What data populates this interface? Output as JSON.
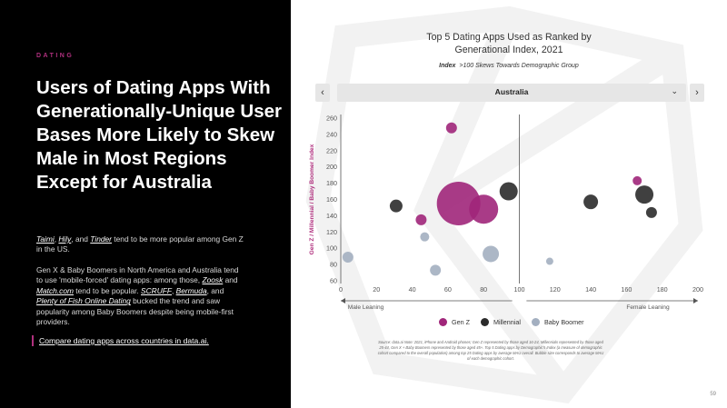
{
  "left": {
    "section_tag": "DATING",
    "headline": "Users of Dating Apps With Generationally-Unique User Bases More Likely to Skew Male in Most Regions Except for Australia",
    "para1": {
      "links": [
        "Taimi",
        "Hily",
        "Tinder"
      ],
      "sep1": ", ",
      "sep2": ", and ",
      "rest": " tend to be more popular among Gen Z in the US."
    },
    "para2": {
      "intro": "Gen X & Baby Boomers in North America and Australia tend to use 'mobile-forced' dating apps: among those, ",
      "link1": "Zoosk",
      "and1": " and ",
      "link2": "Match.com",
      "mid": " tend to be popular. ",
      "link3": "SCRUFF",
      "sep3": ", ",
      "link4": "Bermuda",
      "sep4": ", and ",
      "link5": "Plenty of Fish Online Dating",
      "end": " bucked the trend and saw popularity among Baby Boomers despite being mobile-first providers."
    },
    "cta": "Compare dating apps across countries in data.ai."
  },
  "controls": {
    "prev": "‹",
    "next": "›",
    "region": "Australia",
    "caret": "⌄"
  },
  "chart_data": {
    "type": "scatter",
    "title": "Top 5 Dating Apps Used as Ranked by Generational Index, 2021",
    "title_line1": "Top 5 Dating Apps Used as Ranked by",
    "title_line2": "Generational Index, 2021",
    "subtitle_prefix": "Index",
    "subtitle_rest": ">100 Skews Towards Demographic Group",
    "ylabel": "Gen Z / Millennial / Baby Boomer Index",
    "xlim": [
      0,
      200
    ],
    "ylim": [
      60,
      260
    ],
    "xticks": [
      0,
      20,
      40,
      60,
      80,
      100,
      120,
      140,
      160,
      180,
      200
    ],
    "yticks": [
      60,
      80,
      100,
      120,
      140,
      160,
      180,
      200,
      220,
      240,
      260
    ],
    "x_left_label": "Male Leaning",
    "x_right_label": "Female Leaning",
    "series": [
      {
        "name": "Gen Z",
        "color": "#a0267a",
        "points": [
          {
            "x": 62,
            "y": 248,
            "size": 6
          },
          {
            "x": 66,
            "y": 155,
            "size": 24
          },
          {
            "x": 80,
            "y": 148,
            "size": 16
          },
          {
            "x": 45,
            "y": 135,
            "size": 6
          },
          {
            "x": 166,
            "y": 183,
            "size": 5
          }
        ]
      },
      {
        "name": "Millennial",
        "color": "#2b2b2b",
        "points": [
          {
            "x": 31,
            "y": 152,
            "size": 7
          },
          {
            "x": 94,
            "y": 170,
            "size": 10
          },
          {
            "x": 140,
            "y": 157,
            "size": 8
          },
          {
            "x": 170,
            "y": 166,
            "size": 10
          },
          {
            "x": 174,
            "y": 144,
            "size": 6
          }
        ]
      },
      {
        "name": "Baby Boomer",
        "color": "#a3afc0",
        "points": [
          {
            "x": 4,
            "y": 89,
            "size": 6
          },
          {
            "x": 47,
            "y": 114,
            "size": 5
          },
          {
            "x": 53,
            "y": 73,
            "size": 6
          },
          {
            "x": 84,
            "y": 93,
            "size": 9
          },
          {
            "x": 117,
            "y": 84,
            "size": 4
          }
        ]
      }
    ]
  },
  "source": "Source: data.ai Note: 2021, iPhone and Android phones; Gen Z represented by those aged 16-24, Millennials represented by those aged 25-44, Gen X + Baby Boomers represented by those aged 45+. Top 5 Dating apps by Demographic's Index (a measure of demographic cohort compared to the overall population) among top 25 Dating apps by average MAU overall. Bubble size corresponds to average MAU of each demographic cohort.",
  "page_number": "59"
}
